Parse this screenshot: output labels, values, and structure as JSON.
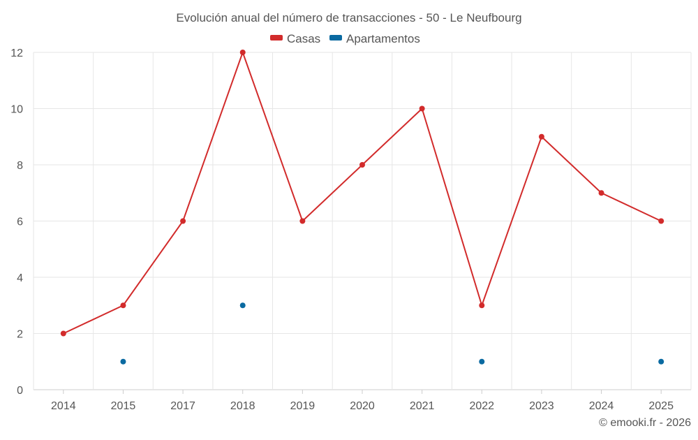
{
  "chart_data": {
    "type": "line",
    "title": "Evolución anual del número de transacciones - 50 - Le Neufbourg",
    "categories": [
      "2014",
      "2015",
      "2017",
      "2018",
      "2019",
      "2020",
      "2021",
      "2022",
      "2023",
      "2024",
      "2025"
    ],
    "y_ticks": [
      "0",
      "2",
      "4",
      "6",
      "8",
      "10",
      "12"
    ],
    "ylim": [
      0,
      12
    ],
    "grid": true,
    "legend_position": "top-center",
    "series": [
      {
        "name": "Casas",
        "color": "#d22b2b",
        "values": [
          2,
          3,
          6,
          12,
          6,
          8,
          10,
          3,
          9,
          7,
          6
        ],
        "line": true
      },
      {
        "name": "Apartamentos",
        "color": "#0a6aa1",
        "values": [
          null,
          1,
          null,
          3,
          null,
          null,
          null,
          1,
          null,
          null,
          1
        ],
        "line": false
      }
    ],
    "credit": "© emooki.fr - 2026"
  }
}
